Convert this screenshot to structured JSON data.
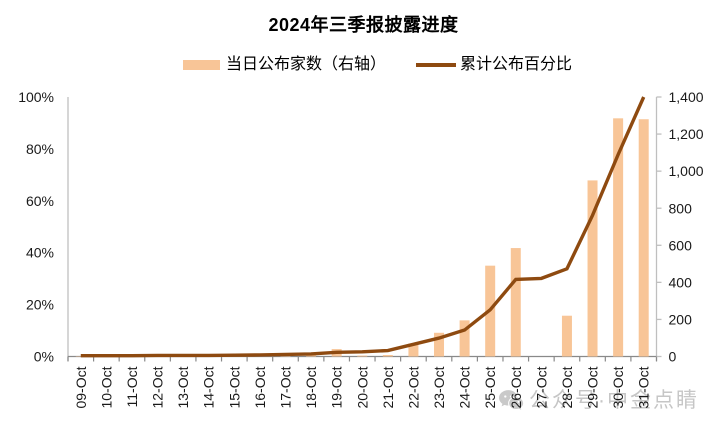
{
  "title": "2024年三季报披露进度",
  "legend": {
    "items": [
      {
        "label": "当日公布家数（右轴）",
        "marker": "bar-swatch",
        "color": "#F8C597"
      },
      {
        "label": "累计公布百分比",
        "marker": "line-swatch",
        "color": "#8E4A10"
      }
    ]
  },
  "watermark": {
    "icon": "wechat-icon",
    "text": "公众号·中金点睛"
  },
  "colors": {
    "bar": "#F8C597",
    "line": "#8E4A10",
    "axis": "#BFBFBF",
    "tick": "#898989",
    "label": "#1a1a1a",
    "watermark": "#c6c6c6"
  },
  "chart_data": {
    "type": "bar",
    "title": "2024年三季报披露进度",
    "categories": [
      "09-Oct",
      "10-Oct",
      "11-Oct",
      "12-Oct",
      "13-Oct",
      "14-Oct",
      "15-Oct",
      "16-Oct",
      "17-Oct",
      "18-Oct",
      "19-Oct",
      "20-Oct",
      "21-Oct",
      "22-Oct",
      "23-Oct",
      "24-Oct",
      "25-Oct",
      "26-Oct",
      "27-Oct",
      "28-Oct",
      "29-Oct",
      "30-Oct",
      "31-Oct"
    ],
    "series": [
      {
        "name": "当日公布家数（右轴）",
        "type": "bar",
        "axis": "right",
        "color": "#F8C597",
        "values": [
          2,
          2,
          3,
          1,
          1,
          3,
          4,
          5,
          7,
          9,
          40,
          5,
          8,
          70,
          128,
          195,
          490,
          585,
          0,
          220,
          950,
          1285,
          1280
        ]
      },
      {
        "name": "累计公布百分比",
        "type": "line",
        "axis": "left",
        "color": "#8E4A10",
        "values": [
          0.3,
          0.3,
          0.3,
          0.4,
          0.4,
          0.4,
          0.5,
          0.6,
          0.8,
          1.0,
          1.6,
          1.8,
          2.3,
          4.7,
          7.1,
          10.2,
          18.0,
          29.7,
          30.1,
          33.8,
          54.4,
          77.8,
          100.0
        ]
      }
    ],
    "left_axis": {
      "min": 0,
      "max": 100,
      "tick_step": 20,
      "tick_labels": [
        "0%",
        "20%",
        "40%",
        "60%",
        "80%",
        "100%"
      ]
    },
    "right_axis": {
      "min": 0,
      "max": 1400,
      "tick_step": 200,
      "tick_labels": [
        "0",
        "200",
        "400",
        "600",
        "800",
        "1,000",
        "1,200",
        "1,400"
      ]
    },
    "xlabel": "",
    "ylabel": "",
    "grid": false,
    "legend_position": "top",
    "x_tick_rotation": -90
  }
}
